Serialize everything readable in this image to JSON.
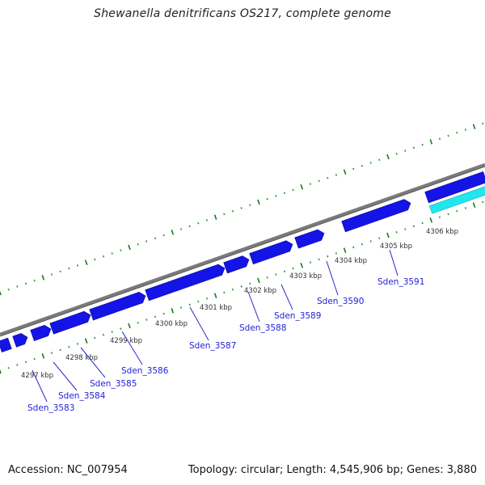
{
  "header": {
    "title": "Shewanella denitrificans OS217, complete genome"
  },
  "footer": {
    "accession": "Accession: NC_007954",
    "summary": "Topology: circular; Length: 4,545,906 bp; Genes: 3,880"
  },
  "colors": {
    "backbone": "#7a7a7a",
    "tick_major": "#1a7a1a",
    "tick_minor": "#2a9a2a",
    "gene_forward": "#1414e6",
    "gene_rna": "#22e6ee",
    "label": "#1f1fd6"
  },
  "ticks": [
    "4297 kbp",
    "4298 kbp",
    "4299 kbp",
    "4300 kbp",
    "4301 kbp",
    "4302 kbp",
    "4303 kbp",
    "4304 kbp",
    "4305 kbp",
    "4306 kbp"
  ],
  "genes": [
    "Sden_3583",
    "Sden_3584",
    "Sden_3585",
    "Sden_3586",
    "Sden_3587",
    "Sden_3588",
    "Sden_3589",
    "Sden_3590",
    "Sden_3591"
  ]
}
